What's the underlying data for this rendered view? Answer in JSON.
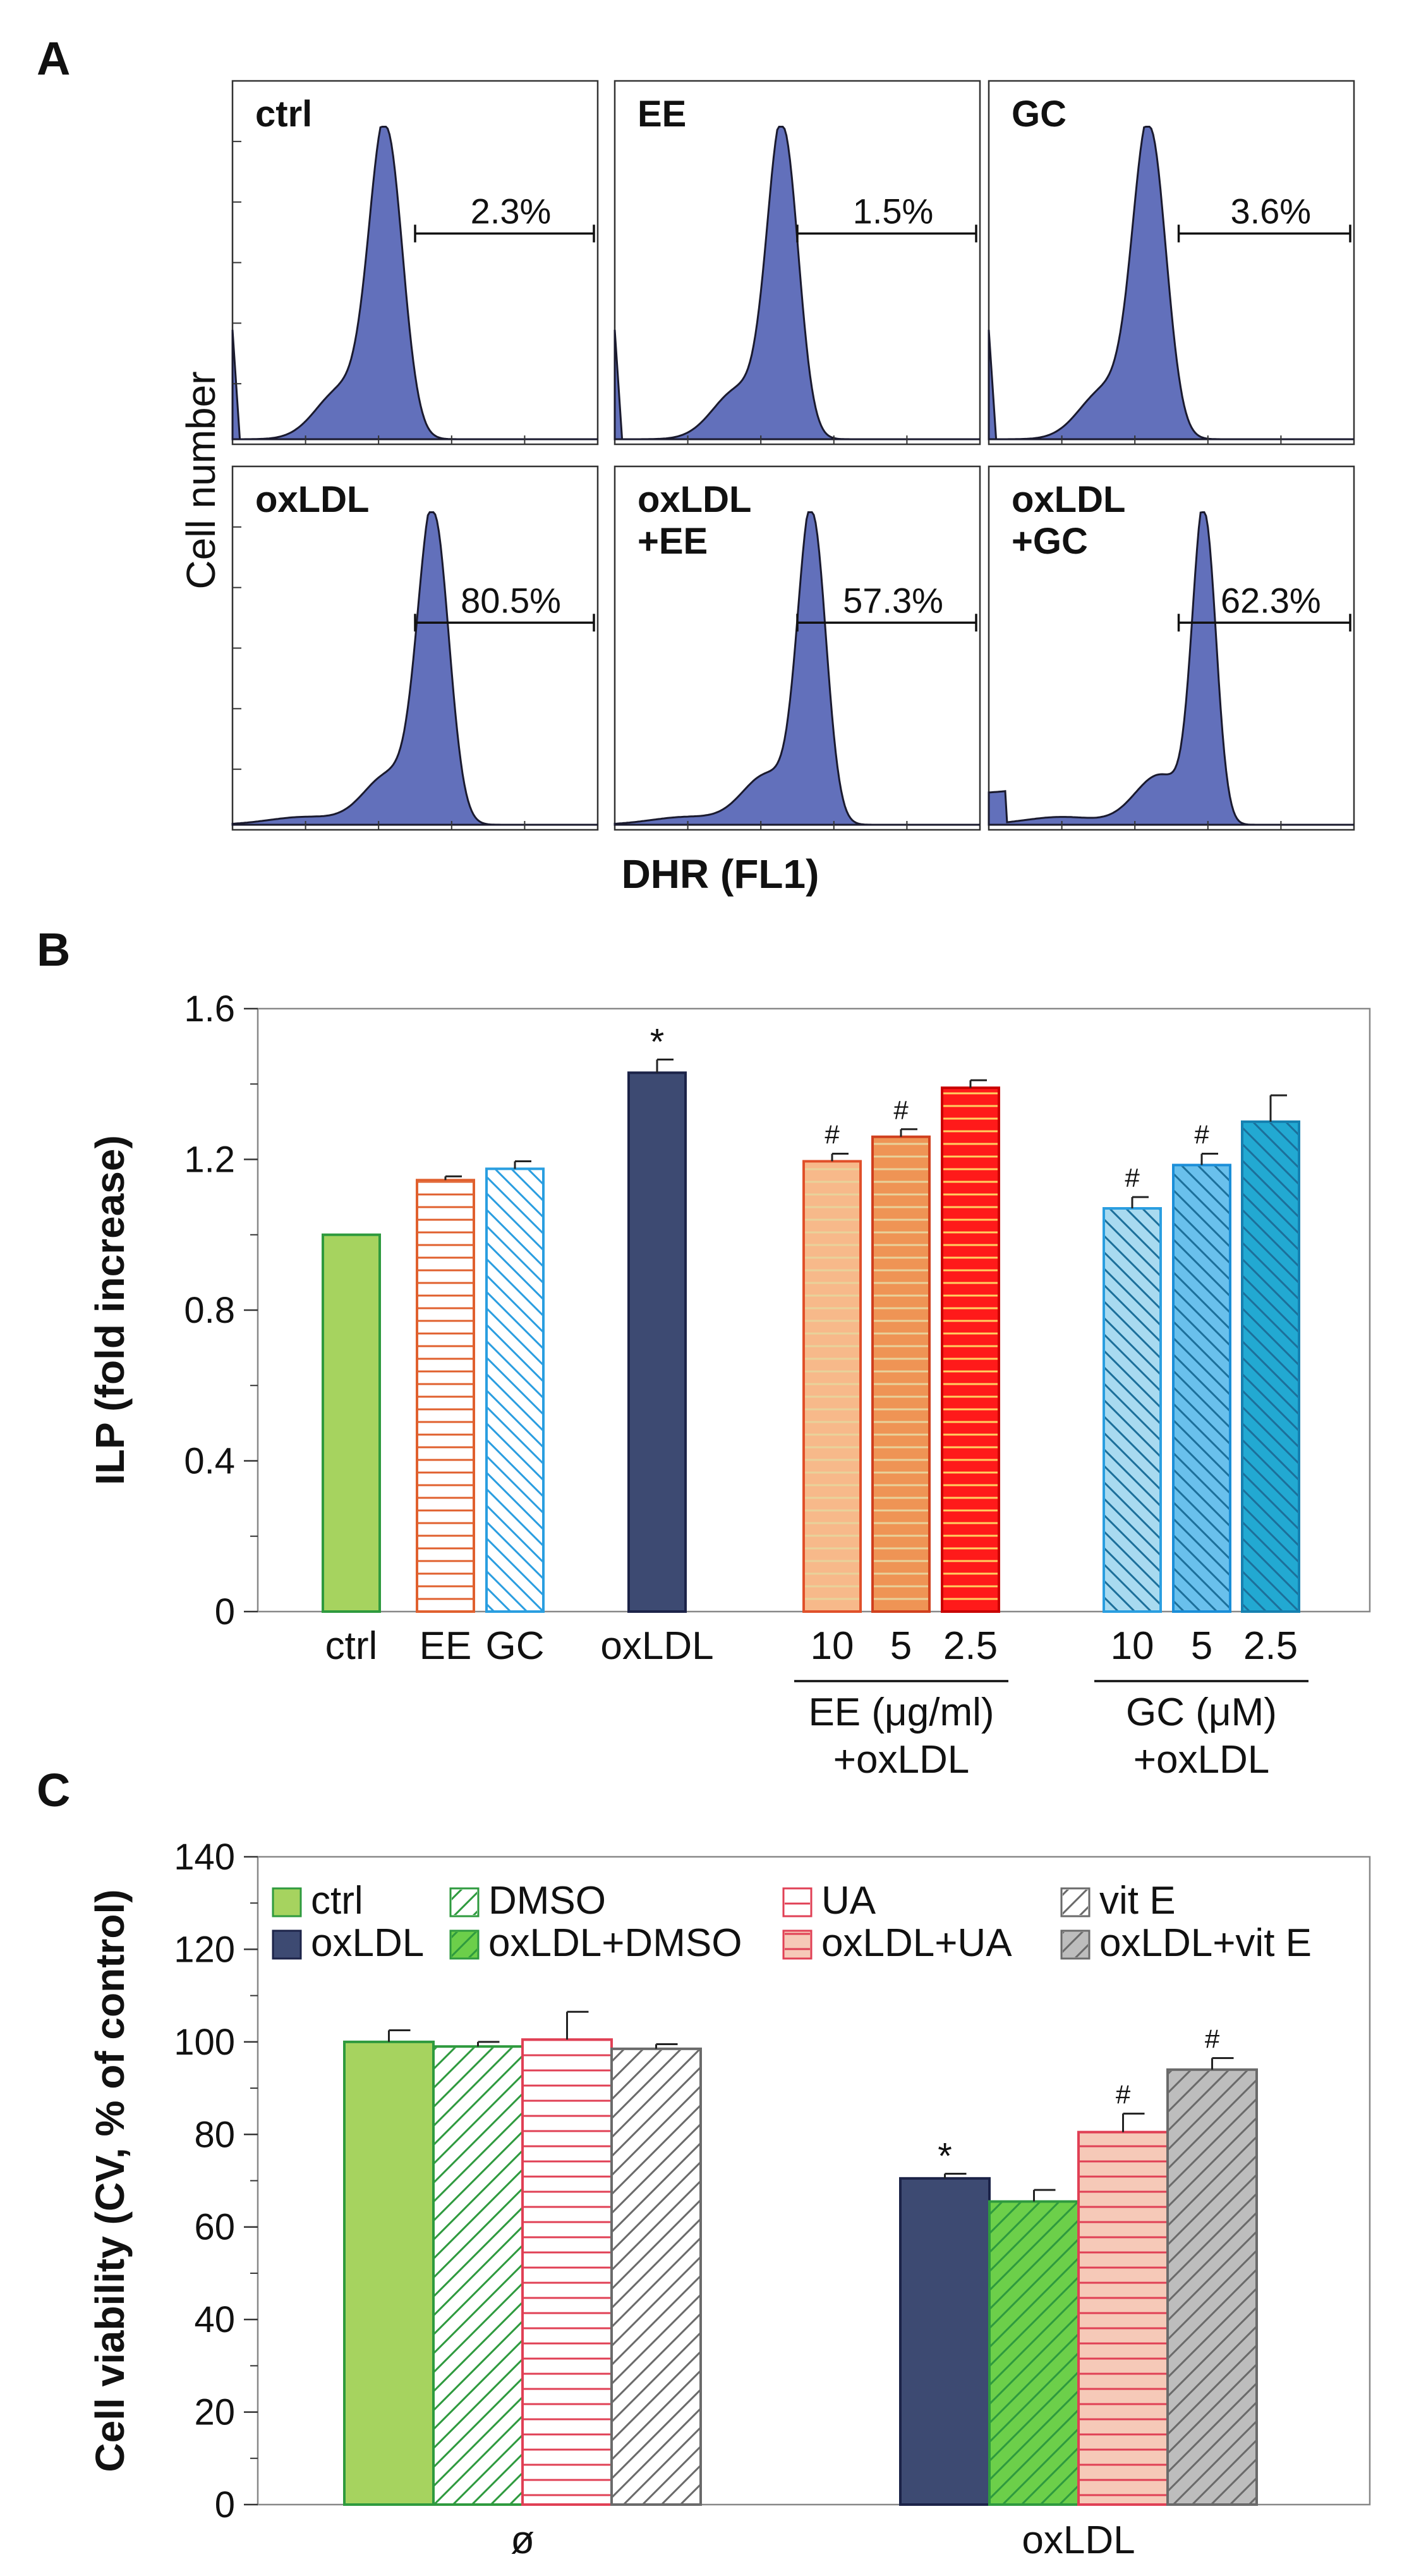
{
  "panel_a": {
    "label": "A",
    "ylabel": "Cell number",
    "xlabel": "DHR (FL1)",
    "subplots": [
      {
        "name": "ctrl",
        "line2": "",
        "percent": "2.3%"
      },
      {
        "name": "EE",
        "line2": "",
        "percent": "1.5%"
      },
      {
        "name": "GC",
        "line2": "",
        "percent": "3.6%"
      },
      {
        "name": "oxLDL",
        "line2": "",
        "percent": "80.5%"
      },
      {
        "name": "oxLDL",
        "line2": "+EE",
        "percent": "57.3%"
      },
      {
        "name": "oxLDL",
        "line2": "+GC",
        "percent": "62.3%"
      }
    ],
    "colors": {
      "fill": "#6270bb",
      "line": "#1a1a2e"
    }
  },
  "chart_data": [
    {
      "type": "bar",
      "panel": "B",
      "ylabel": "ILP (fold increase)",
      "ylim": [
        0,
        1.6
      ],
      "yticks": [
        "0",
        "0.4",
        "0.8",
        "1.2",
        "1.6"
      ],
      "groups": [
        {
          "label": "",
          "line2": "",
          "bars": [
            {
              "cat": "ctrl",
              "value": 1.0,
              "err": 0,
              "mark": "",
              "color": "#a6d35f",
              "edge": "#2e9a3e",
              "pattern": "solid"
            },
            {
              "cat": "EE",
              "value": 1.145,
              "err": 0.01,
              "mark": "",
              "color": "#ffffff",
              "edge": "#e0602e",
              "pattern": "hlines"
            },
            {
              "cat": "GC",
              "value": 1.175,
              "err": 0.02,
              "mark": "",
              "color": "#ffffff",
              "edge": "#2a9ee0",
              "pattern": "diag"
            }
          ]
        },
        {
          "label": "",
          "line2": "",
          "bars": [
            {
              "cat": "oxLDL",
              "value": 1.43,
              "err": 0.035,
              "mark": "*",
              "color": "#3d4a72",
              "edge": "#1c2348",
              "pattern": "solid"
            }
          ]
        },
        {
          "label": "EE (μg/ml)",
          "line2": "+oxLDL",
          "bars": [
            {
              "cat": "10",
              "value": 1.195,
              "err": 0.02,
              "mark": "#",
              "color": "#f7b98a",
              "edge": "#e0502a",
              "pattern": "hlines"
            },
            {
              "cat": "5",
              "value": 1.26,
              "err": 0.02,
              "mark": "#",
              "color": "#ef9455",
              "edge": "#d0401e",
              "pattern": "hlines"
            },
            {
              "cat": "2.5",
              "value": 1.39,
              "err": 0.02,
              "mark": "",
              "color": "#ff1a1a",
              "edge": "#c80000",
              "pattern": "hlines"
            }
          ]
        },
        {
          "label": "GC (μM)",
          "line2": "+oxLDL",
          "bars": [
            {
              "cat": "10",
              "value": 1.07,
              "err": 0.03,
              "mark": "#",
              "color": "#a8daf0",
              "edge": "#2a9ee0",
              "pattern": "diag"
            },
            {
              "cat": "5",
              "value": 1.185,
              "err": 0.03,
              "mark": "#",
              "color": "#69c0ec",
              "edge": "#1a8ed8",
              "pattern": "diag"
            },
            {
              "cat": "2.5",
              "value": 1.3,
              "err": 0.07,
              "mark": "",
              "color": "#22a9d2",
              "edge": "#1580b0",
              "pattern": "diag"
            }
          ]
        }
      ]
    },
    {
      "type": "bar",
      "panel": "C",
      "ylabel": "Cell viability (CV, % of control)",
      "ylim": [
        0,
        140
      ],
      "yticks": [
        "0",
        "20",
        "40",
        "60",
        "80",
        "100",
        "120",
        "140"
      ],
      "categories": [
        "ø",
        "oxLDL"
      ],
      "series": [
        {
          "name": "ctrl",
          "values": [
            100,
            null
          ],
          "err": [
            2.5,
            null
          ],
          "color": "#a6d35f",
          "edge": "#2e9a3e",
          "pattern": "solid"
        },
        {
          "name": "DMSO",
          "values": [
            99,
            null
          ],
          "err": [
            1,
            null
          ],
          "color": "#ffffff",
          "edge": "#2e9a3e",
          "pattern": "diag"
        },
        {
          "name": "UA",
          "values": [
            100.5,
            null
          ],
          "err": [
            6,
            null
          ],
          "color": "#ffffff",
          "edge": "#e04055",
          "pattern": "hlines"
        },
        {
          "name": "vit E",
          "values": [
            98.5,
            null
          ],
          "err": [
            1,
            null
          ],
          "color": "#ffffff",
          "edge": "#6a6a6a",
          "pattern": "diag"
        },
        {
          "name": "oxLDL",
          "values": [
            null,
            70.5
          ],
          "err": [
            null,
            1
          ],
          "mark": [
            null,
            "*"
          ],
          "color": "#3d4a72",
          "edge": "#1c2348",
          "pattern": "solid"
        },
        {
          "name": "oxLDL+DMSO",
          "values": [
            null,
            65.5
          ],
          "err": [
            null,
            2.5
          ],
          "mark": [
            null,
            ""
          ],
          "color": "#6ccf4a",
          "edge": "#2e9a3e",
          "pattern": "diag"
        },
        {
          "name": "oxLDL+UA",
          "values": [
            null,
            80.5
          ],
          "err": [
            null,
            4
          ],
          "mark": [
            null,
            "#"
          ],
          "color": "#f6c9b8",
          "edge": "#e04055",
          "pattern": "hlines"
        },
        {
          "name": "oxLDL+vit E",
          "values": [
            null,
            94
          ],
          "err": [
            null,
            2.5
          ],
          "mark": [
            null,
            "#"
          ],
          "color": "#bdbdbd",
          "edge": "#6a6a6a",
          "pattern": "diag"
        }
      ]
    }
  ]
}
